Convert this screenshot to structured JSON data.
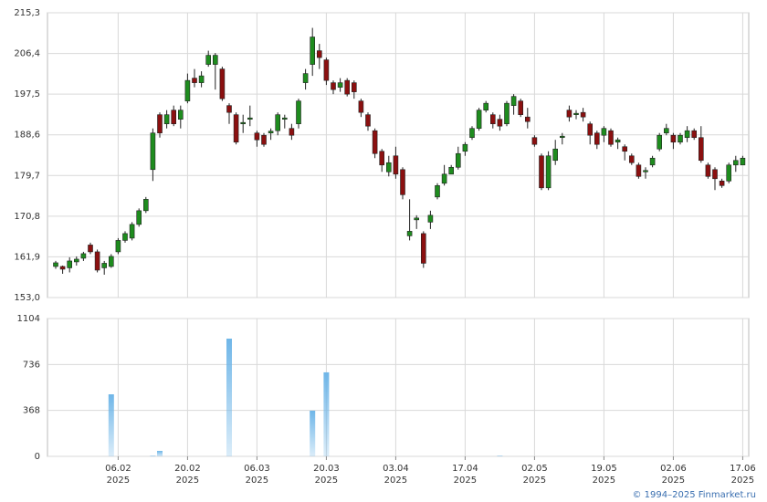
{
  "chart_data": {
    "type": "candlestick",
    "year_label": "2025",
    "credit": "© 1994–2025 Finmarket.ru",
    "up_color": "#1e8c1e",
    "down_color": "#8b1010",
    "volume_color": "#6fb6e8",
    "grid": true,
    "categories": [
      null,
      null,
      null,
      null,
      null,
      null,
      null,
      null,
      null,
      "06.02",
      null,
      null,
      null,
      null,
      null,
      null,
      null,
      null,
      null,
      "20.02",
      null,
      null,
      null,
      null,
      null,
      null,
      null,
      null,
      null,
      "06.03",
      null,
      null,
      null,
      null,
      null,
      null,
      null,
      null,
      null,
      "20.03",
      null,
      null,
      null,
      null,
      null,
      null,
      null,
      null,
      null,
      "03.04",
      null,
      null,
      null,
      null,
      null,
      null,
      null,
      null,
      null,
      "17.04",
      null,
      null,
      null,
      null,
      null,
      null,
      null,
      null,
      null,
      "02.05",
      null,
      null,
      null,
      null,
      null,
      null,
      null,
      null,
      null,
      "19.05",
      null,
      null,
      null,
      null,
      null,
      null,
      null,
      null,
      null,
      "02.06",
      null,
      null,
      null,
      null,
      null,
      null,
      null,
      null,
      null,
      "17.06"
    ],
    "open": [
      159.8,
      159.8,
      159.5,
      160.8,
      161.6,
      164.5,
      163,
      159.5,
      159.8,
      163,
      165.5,
      166,
      169,
      172,
      181,
      193,
      191,
      194,
      192,
      196,
      201,
      200,
      204,
      204,
      203,
      195,
      193,
      191,
      192,
      189,
      188.5,
      189,
      189.5,
      192,
      190,
      191,
      200,
      204,
      207,
      205,
      200,
      199,
      200.5,
      200,
      196,
      193,
      189.5,
      185,
      180.5,
      184,
      181,
      166.5,
      170,
      167,
      169.5,
      175,
      178,
      180,
      181.5,
      185,
      188,
      190,
      194,
      193,
      192,
      191,
      195,
      196,
      192.5,
      188,
      184,
      177,
      183,
      188,
      194,
      193,
      193.5,
      191,
      189,
      188.5,
      189.5,
      187,
      186,
      184,
      182,
      180.5,
      182,
      185.5,
      189,
      188.5,
      187,
      188,
      189.5,
      188,
      182,
      181,
      178.5,
      178.5,
      182,
      182
    ],
    "close": [
      160.6,
      159.2,
      161,
      161.4,
      162.6,
      163,
      159,
      160.5,
      162,
      165.5,
      167,
      169,
      172,
      174.5,
      189,
      189,
      193,
      191,
      194,
      200.5,
      200,
      201.5,
      206,
      206,
      196.5,
      193.5,
      187,
      191.3,
      192.3,
      187.5,
      186.5,
      189.4,
      193,
      192.3,
      188.5,
      196,
      202,
      210,
      205.5,
      200.5,
      198.5,
      200,
      197.5,
      198,
      193.5,
      190.5,
      184.5,
      182,
      182.5,
      180,
      175.5,
      167.5,
      170.4,
      160.5,
      171,
      177.5,
      180,
      181.5,
      184.5,
      186.5,
      190,
      194,
      195.5,
      191,
      190.5,
      195.5,
      197,
      193,
      191.5,
      186.5,
      177,
      184,
      185.5,
      188.3,
      192.5,
      193.3,
      192.5,
      188.5,
      186.5,
      190,
      186.5,
      187.5,
      185,
      182.5,
      179.5,
      180.8,
      183.5,
      188.5,
      190,
      187,
      188.5,
      189.5,
      188,
      183,
      179.5,
      179,
      177.5,
      182,
      183,
      183.5
    ],
    "high": [
      161,
      160,
      161.8,
      162,
      163,
      165,
      163.5,
      161,
      162.5,
      166,
      167.5,
      169.5,
      172.5,
      175,
      190,
      193.5,
      194,
      195,
      195,
      202,
      203,
      202.5,
      207,
      206.5,
      203.5,
      195.5,
      193.5,
      193,
      195,
      189.5,
      189,
      190,
      193.5,
      193,
      191,
      196.5,
      203,
      212,
      208.5,
      205.5,
      200.5,
      201,
      201,
      200.5,
      196.5,
      193.5,
      190,
      185.5,
      184,
      186,
      181.5,
      174.5,
      171,
      167.5,
      172,
      178,
      182,
      182,
      186,
      187,
      190.5,
      194.5,
      196,
      193.5,
      193,
      196,
      197.5,
      196.5,
      194.5,
      188.5,
      184.5,
      185,
      187.5,
      189,
      195,
      194,
      194.5,
      191.5,
      189.5,
      190.5,
      190,
      188,
      186.5,
      184.5,
      182.5,
      181.5,
      184,
      189,
      191,
      189,
      189,
      190.5,
      190,
      190.5,
      182.5,
      181.5,
      179,
      182.5,
      184,
      184
    ],
    "low": [
      159.3,
      158.2,
      158.5,
      160,
      161,
      162.5,
      158.5,
      158,
      159.5,
      162.5,
      165,
      165.5,
      168.5,
      171.5,
      178.5,
      188,
      190,
      190.5,
      190,
      195.5,
      199,
      199,
      203.5,
      198.5,
      196,
      191,
      186.5,
      189,
      190.5,
      186,
      186,
      187.5,
      188.5,
      190,
      187.5,
      190,
      198.5,
      201.5,
      203,
      199.5,
      197.5,
      198,
      197,
      196.5,
      192.5,
      189.5,
      183.5,
      180.5,
      179.5,
      179,
      174.5,
      165.5,
      168,
      159.5,
      168,
      174.5,
      177.5,
      180,
      181,
      184,
      187.5,
      189.5,
      193.5,
      190,
      189.5,
      190.5,
      193,
      192.5,
      190,
      186,
      176.5,
      176.5,
      182,
      186.5,
      191.5,
      192,
      191.5,
      186.5,
      185.5,
      187,
      186,
      185.5,
      183,
      182,
      179,
      179,
      181.5,
      185,
      188.5,
      185.5,
      186.5,
      187,
      187.5,
      182.5,
      179,
      176.5,
      177,
      178,
      180.5,
      182
    ],
    "volume": [
      0,
      0,
      0,
      0,
      0,
      0,
      0,
      0,
      497,
      0,
      0,
      0,
      0,
      0,
      5,
      44,
      0,
      0,
      0,
      0,
      0,
      0,
      0,
      0,
      0,
      943,
      0,
      0,
      0,
      0,
      0,
      0,
      0,
      0,
      0,
      0,
      0,
      366,
      0,
      673,
      0,
      0,
      0,
      0,
      0,
      0,
      0,
      0,
      0,
      0,
      0,
      0,
      0,
      0,
      0,
      0,
      0,
      0,
      0,
      0,
      0,
      0,
      0,
      0,
      5,
      0,
      0,
      0,
      0,
      0,
      0,
      0,
      0,
      0,
      0,
      0,
      0,
      0,
      0,
      0,
      0,
      0,
      0,
      0,
      0,
      0,
      0,
      0,
      0,
      0,
      0,
      0,
      0,
      0,
      0,
      0,
      0,
      0,
      0,
      0
    ],
    "ylim": [
      153.0,
      215.3
    ],
    "yticks": [
      {
        "value": 153.0,
        "label": "153,0"
      },
      {
        "value": 161.9,
        "label": "161,9"
      },
      {
        "value": 170.8,
        "label": "170,8"
      },
      {
        "value": 179.7,
        "label": "179,7"
      },
      {
        "value": 188.6,
        "label": "188,6"
      },
      {
        "value": 197.5,
        "label": "197,5"
      },
      {
        "value": 206.4,
        "label": "206,4"
      },
      {
        "value": 215.3,
        "label": "215,3"
      }
    ],
    "volume_lim": [
      0,
      1104
    ],
    "volume_ticks": [
      0,
      368,
      736,
      1104
    ]
  }
}
